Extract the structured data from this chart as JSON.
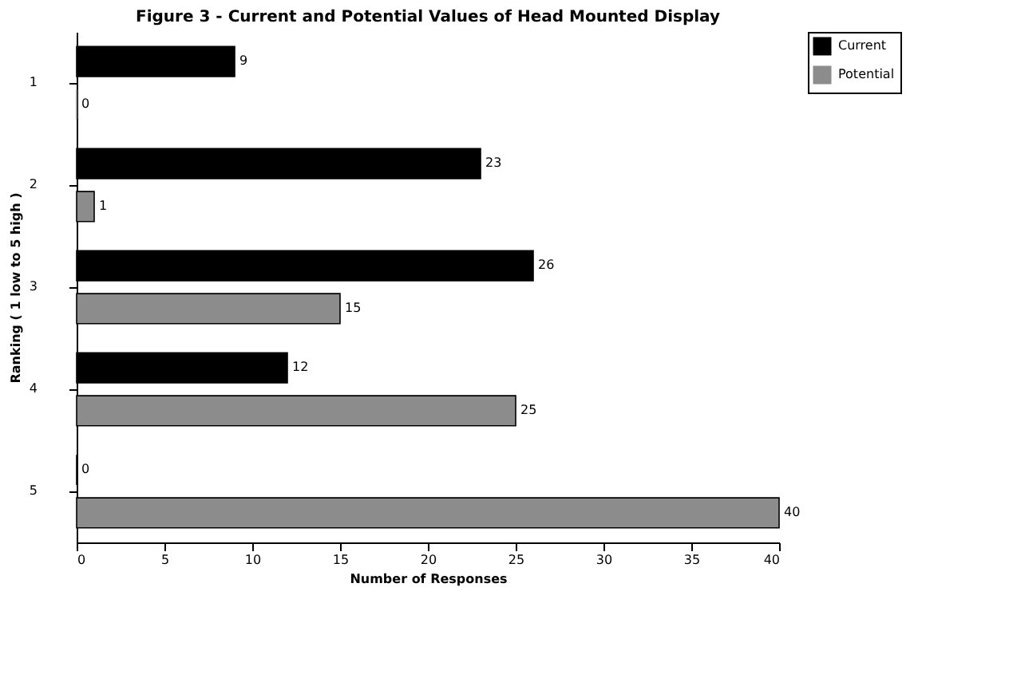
{
  "chart_data": {
    "type": "bar",
    "orientation": "horizontal",
    "title": "Figure 3 - Current and Potential Values of Head Mounted Display",
    "xlabel": "Number of Responses",
    "ylabel": "Ranking ( 1 low to 5 high )",
    "categories": [
      "1",
      "2",
      "3",
      "4",
      "5"
    ],
    "series": [
      {
        "name": "Current",
        "color": "#000000",
        "values": [
          9,
          23,
          26,
          12,
          0
        ]
      },
      {
        "name": "Potential",
        "color": "#8c8c8c",
        "values": [
          0,
          1,
          15,
          25,
          40
        ]
      }
    ],
    "xlim": [
      0,
      40
    ],
    "xticks": [
      0,
      5,
      10,
      15,
      20,
      25,
      30,
      35,
      40
    ],
    "data_labels": true,
    "legend": "right",
    "grid": false
  }
}
